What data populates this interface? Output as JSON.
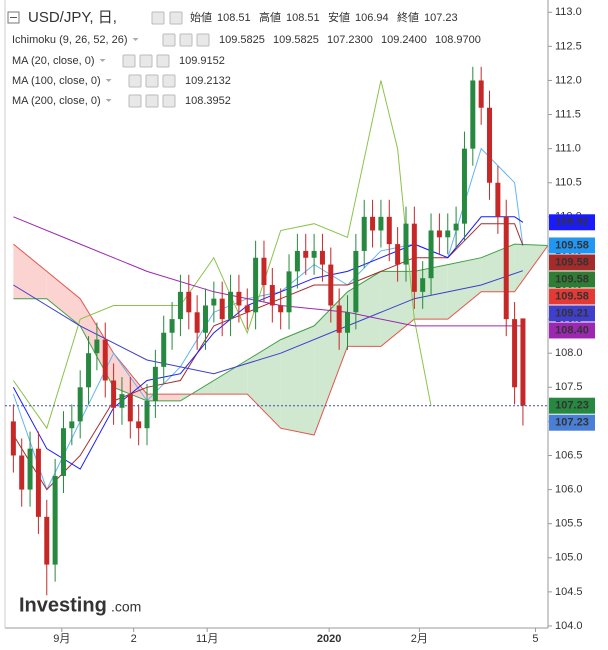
{
  "chart_data": {
    "type": "candlestick",
    "header": {
      "symbol": "USD/JPY, 日,",
      "ohlc": [
        {
          "label": "始値",
          "value": 108.51
        },
        {
          "label": "高値",
          "value": 108.51
        },
        {
          "label": "安値",
          "value": 106.94
        },
        {
          "label": "終値",
          "value": 107.23
        }
      ],
      "indicators": [
        {
          "name": "Ichimoku (9, 26, 52, 26)",
          "readouts": [
            {
              "value": 109.5825,
              "color": "#2196f3"
            },
            {
              "value": 109.5825,
              "color": "#b71c1c"
            },
            {
              "value": 107.23,
              "label": "107.2300",
              "color": "#2e7d32"
            },
            {
              "value": 109.24,
              "label": "109.2400",
              "color": "#2e7d32"
            },
            {
              "value": 108.97,
              "label": "108.9700",
              "color": "#e53935"
            }
          ]
        },
        {
          "name": "MA (20, close, 0)",
          "readouts": [
            {
              "value": 109.9152,
              "color": "#1a1aff"
            }
          ]
        },
        {
          "name": "MA (100, close, 0)",
          "readouts": [
            {
              "value": 109.2132,
              "color": "#3f3fcc"
            }
          ]
        },
        {
          "name": "MA (200, close, 0)",
          "readouts": [
            {
              "value": 108.3952,
              "color": "#9c27b0"
            }
          ]
        }
      ]
    },
    "ohlc": {
      "up_color": "#26893f",
      "down_color": "#c62828",
      "open": [
        107.0,
        106.5,
        106.0,
        106.6,
        105.6,
        104.9,
        106.2,
        106.9,
        107.0,
        107.5,
        108.0,
        108.2,
        107.6,
        107.2,
        107.4,
        107.0,
        106.9,
        107.3,
        107.8,
        108.3,
        108.5,
        108.9,
        108.6,
        108.3,
        108.7,
        108.8,
        108.5,
        108.9,
        108.7,
        108.6,
        109.4,
        109.0,
        108.7,
        108.6,
        109.2,
        109.5,
        109.4,
        109.5,
        109.3,
        108.7,
        108.3,
        108.6,
        109.5,
        110.0,
        109.8,
        110.0,
        109.6,
        109.3,
        109.9,
        108.9,
        109.1,
        109.8,
        109.7,
        109.8,
        109.9,
        111.0,
        112.0,
        111.6,
        110.5,
        110.0,
        108.5,
        108.51
      ],
      "high": [
        107.25,
        106.75,
        106.85,
        106.85,
        105.85,
        106.45,
        107.15,
        107.25,
        107.75,
        108.25,
        108.45,
        108.45,
        107.85,
        107.65,
        107.65,
        107.25,
        107.55,
        108.05,
        108.55,
        108.75,
        109.15,
        109.15,
        108.85,
        108.95,
        109.05,
        109.05,
        109.15,
        109.15,
        108.95,
        109.65,
        109.65,
        109.25,
        108.95,
        109.45,
        109.75,
        109.75,
        109.75,
        109.75,
        109.55,
        108.95,
        108.85,
        109.75,
        110.25,
        110.25,
        110.25,
        110.25,
        109.85,
        110.15,
        110.15,
        109.35,
        110.05,
        110.05,
        110.05,
        110.15,
        111.25,
        112.2,
        112.2,
        111.85,
        110.75,
        110.25,
        108.75,
        108.51
      ],
      "low": [
        106.25,
        105.75,
        105.75,
        105.35,
        104.45,
        104.65,
        105.95,
        106.65,
        106.75,
        107.25,
        107.75,
        107.35,
        106.95,
        106.95,
        106.75,
        106.65,
        106.65,
        107.05,
        107.55,
        108.05,
        108.25,
        108.35,
        108.05,
        108.05,
        108.45,
        108.25,
        108.25,
        108.45,
        108.35,
        108.35,
        108.75,
        108.45,
        108.35,
        108.35,
        108.95,
        109.15,
        109.15,
        109.05,
        108.45,
        108.05,
        108.05,
        108.35,
        109.25,
        109.55,
        109.55,
        109.35,
        109.05,
        109.05,
        108.65,
        108.65,
        108.85,
        109.45,
        109.45,
        109.55,
        109.65,
        110.75,
        111.35,
        110.25,
        109.75,
        108.25,
        107.25,
        106.94
      ],
      "close": [
        106.5,
        106.0,
        106.6,
        105.6,
        104.9,
        106.2,
        106.9,
        107.0,
        107.5,
        108.0,
        108.2,
        107.6,
        107.2,
        107.4,
        107.0,
        106.9,
        107.3,
        107.8,
        108.3,
        108.5,
        108.9,
        108.6,
        108.3,
        108.7,
        108.8,
        108.5,
        108.9,
        108.7,
        108.6,
        109.4,
        109.0,
        108.7,
        108.6,
        109.2,
        109.5,
        109.4,
        109.5,
        109.3,
        108.7,
        108.3,
        108.6,
        109.5,
        110.0,
        109.8,
        110.0,
        109.6,
        109.3,
        109.9,
        108.9,
        109.1,
        109.8,
        109.7,
        109.8,
        109.9,
        111.0,
        112.0,
        111.6,
        110.5,
        110.0,
        108.5,
        107.5,
        107.23
      ]
    },
    "cloud": {
      "x": [
        0,
        4,
        8,
        12,
        16,
        20,
        24,
        28,
        32,
        36,
        40,
        44,
        48,
        52,
        56,
        60,
        64
      ],
      "span_a": [
        108.8,
        108.8,
        108.4,
        107.5,
        107.3,
        107.3,
        107.6,
        107.9,
        108.2,
        108.4,
        108.9,
        109.2,
        109.2,
        109.3,
        109.4,
        109.6,
        109.58
      ],
      "span_b": [
        109.6,
        109.2,
        108.8,
        108.0,
        107.4,
        107.4,
        107.4,
        107.4,
        106.9,
        106.8,
        108.1,
        108.1,
        108.5,
        108.5,
        108.9,
        108.9,
        109.58
      ],
      "a_color": "#43a047",
      "b_color": "#e0574f",
      "up_fill": "#cfe8cf",
      "down_fill": "#fbd3d0"
    },
    "series": [
      {
        "color": "#64b5f6",
        "x": [
          0,
          4,
          8,
          12,
          16,
          20,
          24,
          28,
          32,
          36,
          40,
          44,
          48,
          52,
          56,
          60,
          61
        ],
        "values": [
          107.4,
          106.0,
          107.0,
          108.0,
          107.3,
          107.8,
          108.6,
          108.8,
          108.9,
          109.3,
          109.0,
          109.5,
          109.6,
          109.4,
          111.0,
          110.5,
          109.58
        ]
      },
      {
        "color": "#a52a2a",
        "x": [
          0,
          4,
          8,
          12,
          16,
          20,
          24,
          28,
          32,
          36,
          40,
          44,
          48,
          52,
          56,
          60,
          61
        ],
        "values": [
          106.8,
          106.0,
          106.5,
          107.3,
          107.5,
          107.6,
          108.4,
          108.6,
          108.8,
          109.0,
          109.0,
          109.2,
          109.4,
          109.4,
          109.9,
          109.9,
          109.58
        ]
      },
      {
        "color": "#8bc34a",
        "x": [
          0,
          4,
          8,
          12,
          16,
          20,
          24,
          28,
          32,
          36,
          40,
          44,
          46,
          48,
          50
        ],
        "values": [
          107.6,
          106.9,
          108.5,
          108.7,
          108.7,
          108.7,
          109.4,
          108.3,
          109.8,
          109.9,
          109.7,
          112.0,
          111.0,
          108.5,
          107.23
        ]
      },
      {
        "color": "#1a1aff",
        "x": [
          0,
          4,
          8,
          12,
          16,
          20,
          24,
          28,
          32,
          36,
          40,
          44,
          48,
          52,
          56,
          60,
          61
        ],
        "values": [
          107.5,
          106.6,
          106.3,
          107.2,
          107.6,
          107.7,
          108.3,
          108.7,
          108.9,
          109.1,
          109.2,
          109.4,
          109.6,
          109.4,
          110.0,
          110.0,
          109.92
        ]
      },
      {
        "color": "#3f3fcc",
        "x": [
          0,
          8,
          16,
          24,
          32,
          40,
          48,
          56,
          61
        ],
        "values": [
          109.0,
          108.4,
          107.9,
          107.7,
          108.0,
          108.4,
          108.8,
          109.0,
          109.21
        ]
      },
      {
        "color": "#9c27b0",
        "x": [
          0,
          8,
          16,
          24,
          32,
          40,
          48,
          56,
          61
        ],
        "values": [
          110.0,
          109.6,
          109.2,
          108.9,
          108.7,
          108.6,
          108.4,
          108.4,
          108.4
        ]
      }
    ],
    "last_price": 107.23,
    "price_tags": [
      {
        "value": 109.92,
        "label": "109.92",
        "color": "#1a1aff"
      },
      {
        "value": 109.58,
        "label": "109.58",
        "color": "#2196f3"
      },
      {
        "value": 109.58,
        "label": "109.58",
        "color": "#a52a2a"
      },
      {
        "value": 109.58,
        "label": "109.58",
        "color": "#2e7d32"
      },
      {
        "value": 109.58,
        "label": "109.58",
        "color": "#e53935"
      },
      {
        "value": 109.21,
        "label": "109.21",
        "color": "#3f3fcc"
      },
      {
        "value": 108.4,
        "label": "108.40",
        "color": "#9c27b0"
      },
      {
        "value": 107.23,
        "label": "107.23",
        "color": "#26893f"
      },
      {
        "value": 107.23,
        "label": "107.23",
        "color": "#4a7fd8"
      }
    ],
    "xlim": [
      -1,
      64
    ],
    "xticks": [
      {
        "value": 5.8,
        "label": "9月"
      },
      {
        "value": 14.4,
        "label": "2"
      },
      {
        "value": 23.2,
        "label": "11月"
      },
      {
        "value": 37.8,
        "label": "2020"
      },
      {
        "value": 48.6,
        "label": "2月"
      },
      {
        "value": 62.5,
        "label": "5"
      }
    ],
    "ylim": [
      103.97,
      113.18
    ],
    "yticks": [
      {
        "value": 104,
        "label": "104.0"
      },
      {
        "value": 104.5,
        "label": "104.5"
      },
      {
        "value": 105,
        "label": "105.0"
      },
      {
        "value": 105.5,
        "label": "105.5"
      },
      {
        "value": 106,
        "label": "106.0"
      },
      {
        "value": 106.5,
        "label": "106.5"
      },
      {
        "value": 107,
        "label": "107.0"
      },
      {
        "value": 107.5,
        "label": "107.5"
      },
      {
        "value": 108,
        "label": "108.0"
      },
      {
        "value": 108.5,
        "label": "108.5"
      },
      {
        "value": 109,
        "label": "109.0"
      },
      {
        "value": 109.5,
        "label": "109.5"
      },
      {
        "value": 110,
        "label": "110.0"
      },
      {
        "value": 110.5,
        "label": "110.5"
      },
      {
        "value": 111,
        "label": "111.0"
      },
      {
        "value": 111.5,
        "label": "111.5"
      },
      {
        "value": 112,
        "label": "112.0"
      },
      {
        "value": 112.5,
        "label": "112.5"
      },
      {
        "value": 113,
        "label": "113.0"
      }
    ],
    "logo": {
      "brand": "Investing",
      "suffix": ".com"
    }
  }
}
